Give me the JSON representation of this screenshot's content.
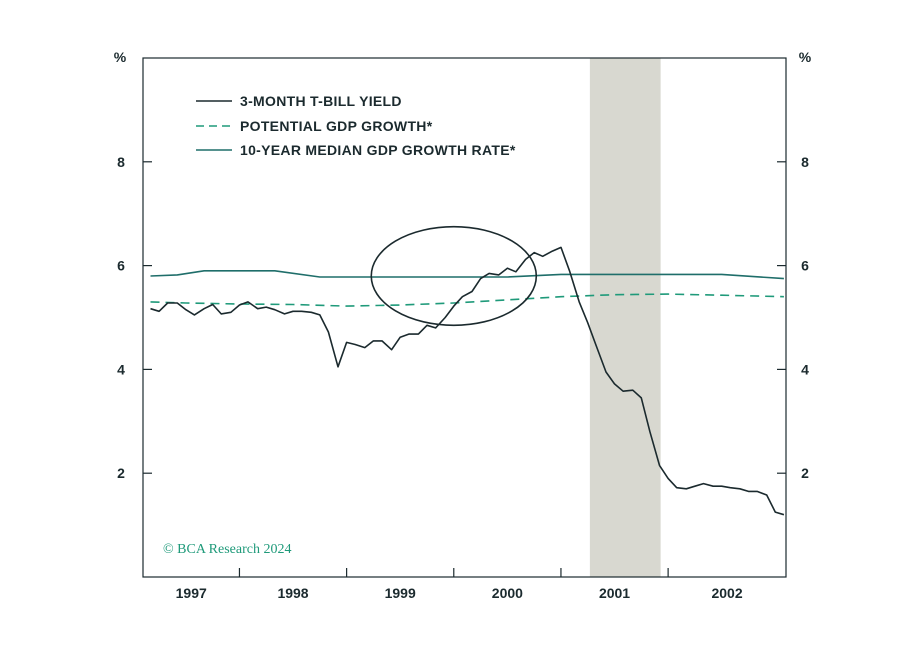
{
  "chart_data": {
    "type": "line",
    "title": "",
    "y_unit_left": "%",
    "y_unit_right": "%",
    "ylim": [
      0,
      10
    ],
    "y_ticks": [
      2,
      4,
      6,
      8
    ],
    "x_range": [
      1996.6,
      2002.6
    ],
    "x_ticks": [
      {
        "label": "1997",
        "start": 1996.6,
        "end": 1997.5
      },
      {
        "label": "1998",
        "start": 1997.5,
        "end": 1998.5
      },
      {
        "label": "1999",
        "start": 1998.5,
        "end": 1999.5
      },
      {
        "label": "2000",
        "start": 1999.5,
        "end": 2000.5
      },
      {
        "label": "2001",
        "start": 2000.5,
        "end": 2001.5
      },
      {
        "label": "2002",
        "start": 2001.5,
        "end": 2002.6
      }
    ],
    "recession": {
      "start": 2000.77,
      "end": 2001.43,
      "color": "#d8d8d0"
    },
    "highlight_ellipse": {
      "cx": 1999.5,
      "cy": 5.8,
      "rx_years": 0.77,
      "ry": 0.95
    },
    "series": [
      {
        "name": "3-MONTH T-BILL YIELD",
        "color": "#1b2a2e",
        "dash": "solid",
        "x": [
          1996.67,
          1996.75,
          1996.83,
          1996.92,
          1997.0,
          1997.08,
          1997.17,
          1997.25,
          1997.33,
          1997.42,
          1997.5,
          1997.58,
          1997.67,
          1997.75,
          1997.83,
          1997.92,
          1998.0,
          1998.08,
          1998.17,
          1998.25,
          1998.33,
          1998.42,
          1998.5,
          1998.58,
          1998.67,
          1998.75,
          1998.83,
          1998.92,
          1999.0,
          1999.08,
          1999.17,
          1999.25,
          1999.33,
          1999.42,
          1999.5,
          1999.58,
          1999.67,
          1999.75,
          1999.83,
          1999.92,
          2000.0,
          2000.08,
          2000.17,
          2000.25,
          2000.33,
          2000.42,
          2000.5,
          2000.58,
          2000.67,
          2000.75,
          2000.83,
          2000.92,
          2001.0,
          2001.08,
          2001.17,
          2001.25,
          2001.33,
          2001.42,
          2001.5,
          2001.58,
          2001.67,
          2001.75,
          2001.83,
          2001.92,
          2002.0,
          2002.08,
          2002.17,
          2002.25,
          2002.33,
          2002.42,
          2002.5,
          2002.58
        ],
        "values": [
          5.17,
          5.12,
          5.28,
          5.28,
          5.15,
          5.05,
          5.17,
          5.25,
          5.07,
          5.1,
          5.24,
          5.3,
          5.17,
          5.2,
          5.15,
          5.07,
          5.12,
          5.12,
          5.1,
          5.05,
          4.72,
          4.05,
          4.52,
          4.48,
          4.42,
          4.55,
          4.55,
          4.38,
          4.62,
          4.68,
          4.68,
          4.85,
          4.8,
          5.0,
          5.22,
          5.4,
          5.5,
          5.75,
          5.85,
          5.82,
          5.95,
          5.88,
          6.12,
          6.25,
          6.18,
          6.28,
          6.35,
          5.9,
          5.3,
          4.9,
          4.45,
          3.95,
          3.72,
          3.58,
          3.6,
          3.45,
          2.8,
          2.15,
          1.9,
          1.72,
          1.7,
          1.75,
          1.8,
          1.75,
          1.75,
          1.72,
          1.7,
          1.65,
          1.65,
          1.58,
          1.25,
          1.2
        ]
      },
      {
        "name": "POTENTIAL GDP GROWTH*",
        "color": "#1f9a7a",
        "dash": "dashed",
        "x": [
          1996.67,
          1997.0,
          1997.5,
          1998.0,
          1998.5,
          1999.0,
          1999.5,
          2000.0,
          2000.5,
          2001.0,
          2001.5,
          2002.0,
          2002.58
        ],
        "values": [
          5.3,
          5.28,
          5.26,
          5.25,
          5.22,
          5.24,
          5.28,
          5.34,
          5.4,
          5.44,
          5.45,
          5.43,
          5.4
        ]
      },
      {
        "name": "10-YEAR MEDIAN GDP GROWTH RATE*",
        "color": "#1f6e6a",
        "dash": "solid",
        "x": [
          1996.67,
          1996.92,
          1997.17,
          1997.5,
          1997.83,
          1998.25,
          1998.5,
          1999.0,
          1999.5,
          2000.0,
          2000.5,
          2001.0,
          2001.5,
          2002.0,
          2002.58
        ],
        "values": [
          5.8,
          5.82,
          5.9,
          5.9,
          5.9,
          5.78,
          5.78,
          5.78,
          5.78,
          5.78,
          5.83,
          5.83,
          5.83,
          5.83,
          5.75
        ]
      }
    ],
    "legend_position": "top-left",
    "source_label": "© BCA Research 2024"
  }
}
